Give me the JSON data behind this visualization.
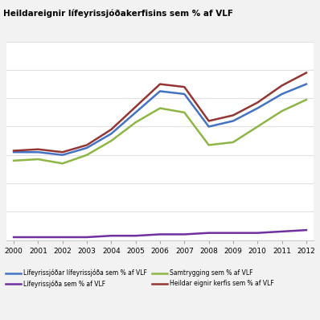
{
  "title": "Heildareignir lífeyrissjóðakerfisins sem % af VLF",
  "years": [
    2000,
    2001,
    2002,
    2003,
    2004,
    2005,
    2006,
    2007,
    2008,
    2009,
    2010,
    2011,
    2012
  ],
  "series_order": [
    "Lífeyrissjóðar lífeyrissjóða sem % af VLF",
    "Samtrygging sem % af VLF",
    "Heildar eignir kerfis sem % af VLF",
    "Lífeyrissjóða sem % af VLF"
  ],
  "series": {
    "Lífeyrissjóðar lífeyrissjóða sem % af VLF": {
      "color": "#4472C4",
      "data": [
        62,
        62,
        60,
        65,
        75,
        90,
        105,
        103,
        80,
        84,
        93,
        103,
        110
      ]
    },
    "Samtrygging sem % af VLF": {
      "color": "#8DB646",
      "data": [
        56,
        57,
        54,
        60,
        70,
        83,
        93,
        90,
        67,
        69,
        80,
        91,
        99
      ]
    },
    "Heildar eignir kerfis sem % af VLF": {
      "color": "#943634",
      "data": [
        63,
        64,
        62,
        67,
        78,
        94,
        110,
        108,
        84,
        88,
        97,
        109,
        118
      ]
    },
    "Lífeyrissjóða sem % af VLF": {
      "color": "#7030A0",
      "data": [
        2,
        2,
        2,
        2,
        3,
        3,
        4,
        4,
        5,
        5,
        5,
        6,
        7
      ]
    }
  },
  "legend_labels": [
    "Lífeyrissjóðar lífeyrissjóða sem % af VLF",
    "Lífeyrissjóða sem % af VLF",
    "Samtrygging sem % af VLF",
    "Heildar eignir kerfis sem % af VLF"
  ],
  "ylim": [
    0,
    140
  ],
  "ytick_interval": 20,
  "background_color": "#F2F2F2",
  "plot_bg_color": "#FFFFFF",
  "grid_color": "#E0E0E0"
}
